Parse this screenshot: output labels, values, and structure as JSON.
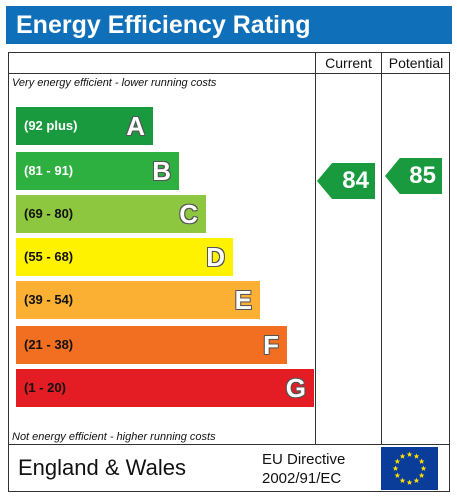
{
  "title": "Energy Efficiency Rating",
  "columns": {
    "current": "Current",
    "potential": "Potential"
  },
  "captions": {
    "top": "Very energy efficient - lower running costs",
    "bottom": "Not energy efficient - higher running costs"
  },
  "bands": [
    {
      "range": "(92 plus)",
      "letter": "A",
      "color": "#1a9a3e",
      "text_color": "#ffffff"
    },
    {
      "range": "(81 - 91)",
      "letter": "B",
      "color": "#2db040",
      "text_color": "#ffffff"
    },
    {
      "range": "(69 - 80)",
      "letter": "C",
      "color": "#8dc63f",
      "text_color": "#111111"
    },
    {
      "range": "(55 - 68)",
      "letter": "D",
      "color": "#fff200",
      "text_color": "#111111"
    },
    {
      "range": "(39 - 54)",
      "letter": "E",
      "color": "#fbb034",
      "text_color": "#111111"
    },
    {
      "range": "(21 - 38)",
      "letter": "F",
      "color": "#f26f21",
      "text_color": "#111111"
    },
    {
      "range": "(1 - 20)",
      "letter": "G",
      "color": "#e31d23",
      "text_color": "#111111"
    }
  ],
  "ratings": {
    "current": "84",
    "potential": "85",
    "arrow_color": "#1a9a3e"
  },
  "footer": {
    "country": "England & Wales",
    "directive_line1": "EU Directive",
    "directive_line2": "2002/91/EC"
  },
  "colors": {
    "title_bar": "#0f6fb8",
    "eu_flag": "#0a3d9a",
    "eu_stars": "#ffdd00"
  }
}
